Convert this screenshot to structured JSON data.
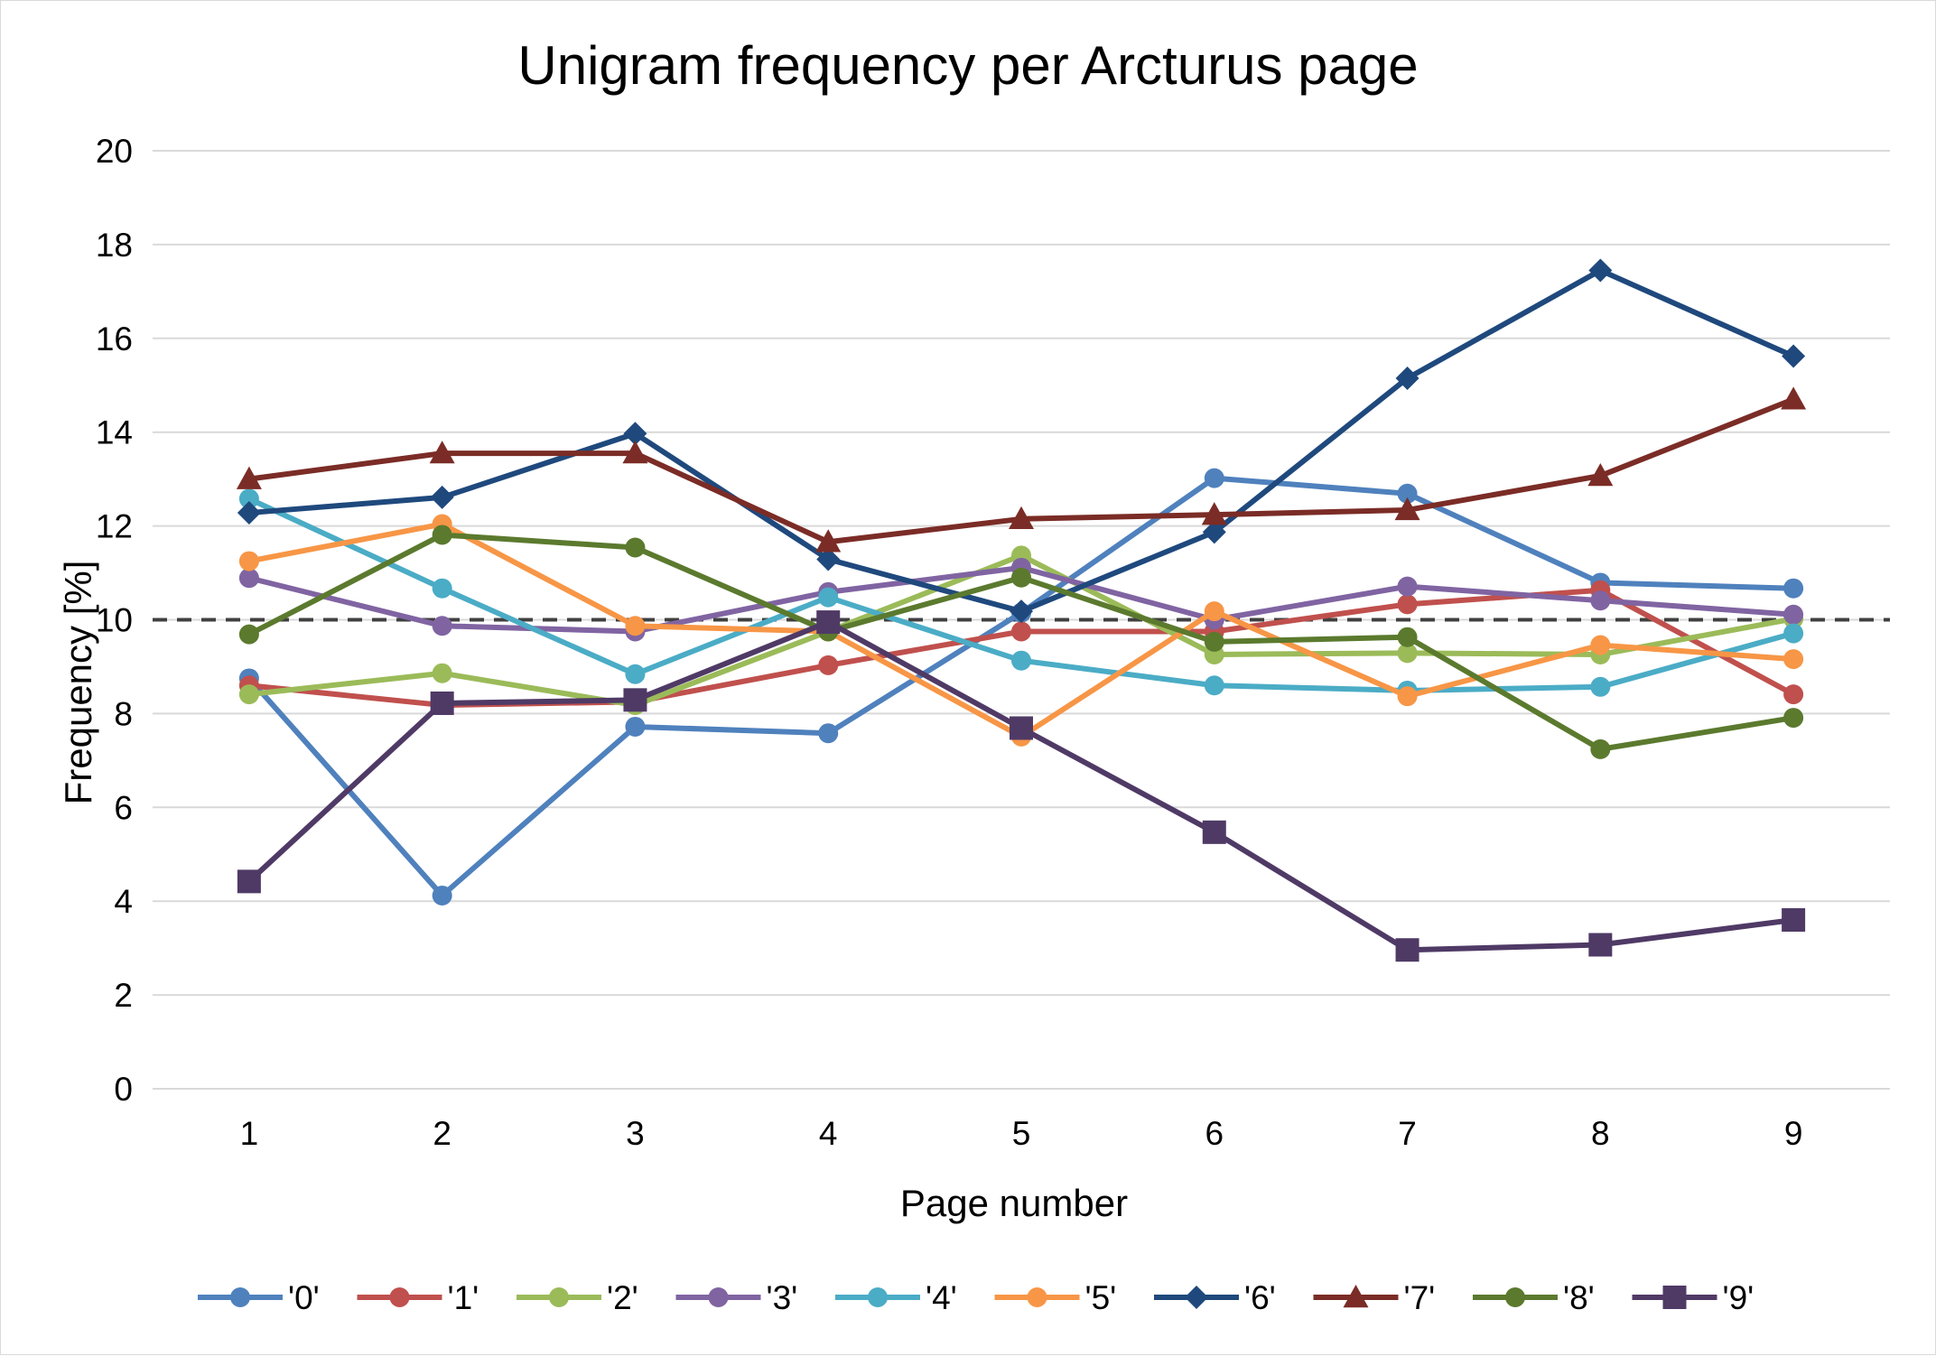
{
  "chart_data": {
    "type": "line",
    "title": "Unigram frequency per Arcturus page",
    "xlabel": "Page number",
    "ylabel": "Frequency [%]",
    "categories": [
      "1",
      "2",
      "3",
      "4",
      "5",
      "6",
      "7",
      "8",
      "9"
    ],
    "ylim": [
      0,
      20
    ],
    "yticks": [
      "0",
      "2",
      "4",
      "6",
      "8",
      "10",
      "12",
      "14",
      "16",
      "18",
      "20"
    ],
    "grid": true,
    "legend_position": "bottom",
    "reference_line": {
      "value": 10,
      "style": "dashed",
      "color": "#404040"
    },
    "series": [
      {
        "name": "'0'",
        "color": "#4F81BD",
        "marker": "circle",
        "values": [
          8.75,
          4.12,
          7.72,
          7.58,
          10.15,
          13.02,
          12.69,
          10.79,
          10.67
        ]
      },
      {
        "name": "'1'",
        "color": "#C0504D",
        "marker": "circle",
        "values": [
          8.6,
          8.18,
          8.25,
          9.03,
          9.75,
          9.75,
          10.33,
          10.63,
          8.41
        ]
      },
      {
        "name": "'2'",
        "color": "#9BBB59",
        "marker": "circle",
        "values": [
          8.41,
          8.86,
          8.18,
          9.75,
          11.37,
          9.26,
          9.29,
          9.26,
          10.02
        ]
      },
      {
        "name": "'3'",
        "color": "#8064A2",
        "marker": "circle",
        "values": [
          10.89,
          9.87,
          9.75,
          10.59,
          11.11,
          10.0,
          10.71,
          10.41,
          10.11
        ]
      },
      {
        "name": "'4'",
        "color": "#4BACC6",
        "marker": "circle",
        "values": [
          12.58,
          10.67,
          8.84,
          10.48,
          9.13,
          8.6,
          8.49,
          8.57,
          9.71
        ]
      },
      {
        "name": "'5'",
        "color": "#F79646",
        "marker": "circle",
        "values": [
          11.25,
          12.04,
          9.87,
          9.75,
          7.51,
          10.18,
          8.37,
          9.46,
          9.16
        ]
      },
      {
        "name": "'6'",
        "color": "#1F497D",
        "marker": "diamond",
        "values": [
          12.28,
          12.61,
          13.97,
          11.29,
          10.18,
          11.87,
          15.15,
          17.45,
          15.62
        ]
      },
      {
        "name": "'7'",
        "color": "#7B2C26",
        "marker": "triangle",
        "values": [
          13.0,
          13.55,
          13.55,
          11.66,
          12.15,
          12.24,
          12.34,
          13.07,
          14.7
        ]
      },
      {
        "name": "'8'",
        "color": "#5B7A2E",
        "marker": "circle",
        "values": [
          9.69,
          11.81,
          11.54,
          9.75,
          10.9,
          9.53,
          9.63,
          7.24,
          7.91
        ]
      },
      {
        "name": "'9'",
        "color": "#4F3A66",
        "marker": "square",
        "values": [
          4.42,
          8.22,
          8.29,
          9.95,
          7.69,
          5.47,
          2.96,
          3.07,
          3.6
        ]
      }
    ]
  }
}
